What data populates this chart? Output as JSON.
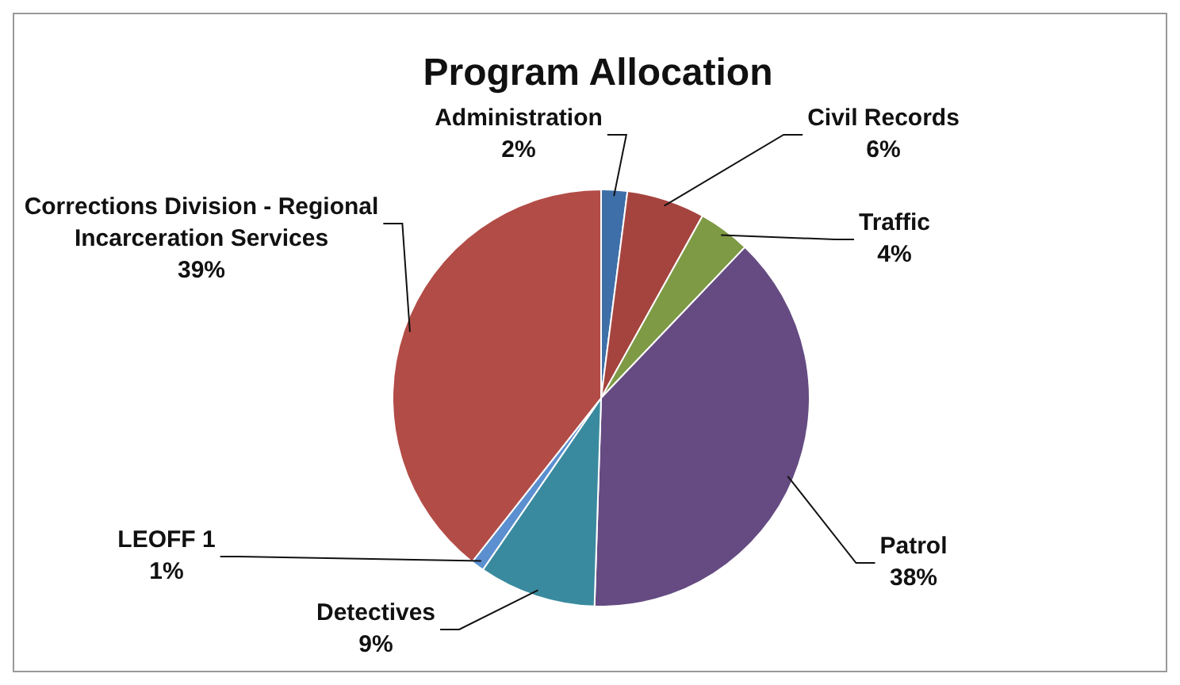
{
  "chart_data": {
    "type": "pie",
    "title": "Program Allocation",
    "categories": [
      "Administration",
      "Civil Records",
      "Traffic",
      "Patrol",
      "Detectives",
      "LEOFF 1",
      "Corrections Division - Regional Incarceration Services"
    ],
    "values": [
      2,
      6,
      4,
      38,
      9,
      1,
      39
    ],
    "value_labels": [
      "2%",
      "6%",
      "4%",
      "38%",
      "9%",
      "1%",
      "39%"
    ],
    "colors": [
      "#3f6fa8",
      "#a5443f",
      "#7e9a45",
      "#654b82",
      "#3a8a9f",
      "#5b8fd0",
      "#b24c47"
    ],
    "legend": false
  }
}
